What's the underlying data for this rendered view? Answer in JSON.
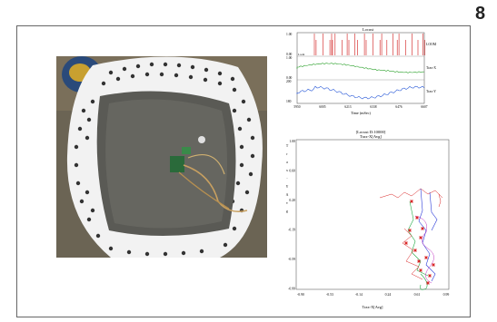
{
  "page": {
    "number": "8"
  },
  "photo": {
    "description_icon": "arena-photo"
  },
  "timeseries": {
    "title": "Locust",
    "xlabel": "Time (mSec)",
    "x_ticks": [
      "5950",
      "6005",
      "6213",
      "6338",
      "6476",
      "6607"
    ],
    "rows": [
      {
        "label": "LOOM",
        "color": "#d01818",
        "y_top": "1.00",
        "y_bot": "0.00"
      },
      {
        "label": "Trax-X",
        "color": "#2aa02a",
        "y_top": "1.00",
        "y_bot": "0.00"
      },
      {
        "label": "Trax-Y",
        "color": "#2a5ad8",
        "y_top": "200",
        "y_bot": "180"
      }
    ],
    "inline_label": "Loom"
  },
  "xyplot": {
    "title1": "[Locust D:10000]",
    "title2": "Trax-X[Avg]",
    "xlabel": "Trax-X[Avg]",
    "ylabel": "Trax-Y[Avg]",
    "y_ticks": [
      "1.00",
      "0.60",
      "0.20",
      "-0.19",
      "-0.59",
      "-0.99"
    ],
    "x_ticks": [
      "-0.90",
      "-0.53",
      "-0.14",
      "0.24",
      "0.61",
      "0.99"
    ],
    "colors": {
      "blue": "#2a3ad8",
      "red": "#d82020",
      "green": "#22aa44",
      "magenta": "#c030c0"
    }
  }
}
